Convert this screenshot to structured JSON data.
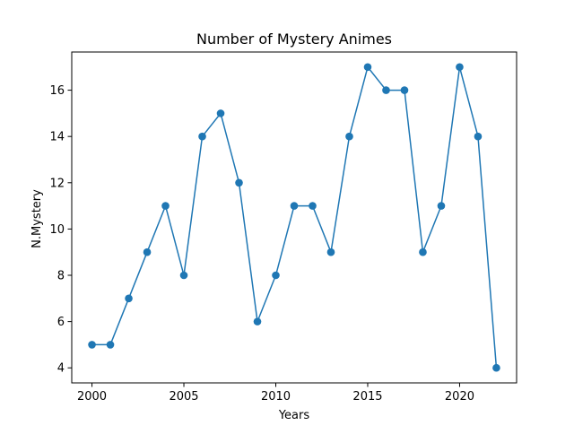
{
  "chart_data": {
    "type": "line",
    "title": "Number of Mystery Animes",
    "xlabel": "Years",
    "ylabel": "N.Mystery",
    "x": [
      2000,
      2001,
      2002,
      2003,
      2004,
      2005,
      2006,
      2007,
      2008,
      2009,
      2010,
      2011,
      2012,
      2013,
      2014,
      2015,
      2016,
      2017,
      2018,
      2019,
      2020,
      2021,
      2022
    ],
    "series": [
      {
        "name": "",
        "values": [
          5,
          5,
          7,
          9,
          11,
          8,
          14,
          15,
          12,
          6,
          8,
          11,
          11,
          9,
          14,
          17,
          16,
          16,
          9,
          11,
          17,
          14,
          4
        ],
        "color": "#1f77b4",
        "marker": "circle"
      }
    ],
    "xlim": [
      1998.9,
      2023.1
    ],
    "ylim": [
      3.35,
      17.65
    ],
    "xticks": [
      2000,
      2005,
      2010,
      2015,
      2020
    ],
    "yticks": [
      4,
      6,
      8,
      10,
      12,
      14,
      16
    ],
    "grid": false,
    "legend": "none"
  }
}
